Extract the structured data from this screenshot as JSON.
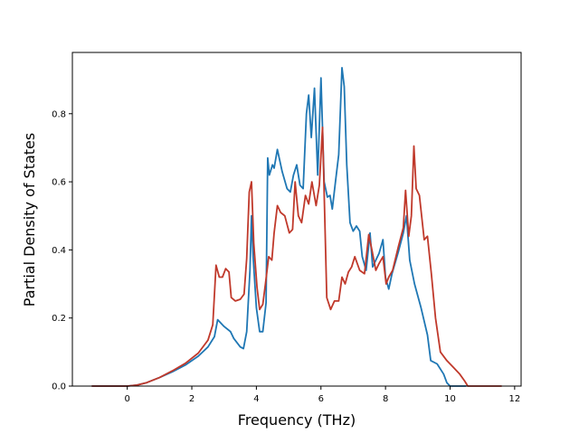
{
  "chart_data": {
    "type": "line",
    "title": "",
    "xlabel": "Frequency (THz)",
    "ylabel": "Partial Density of States",
    "xlim": [
      -1.7,
      12.2
    ],
    "ylim": [
      0.0,
      0.98
    ],
    "grid": false,
    "x_ticks": [
      0,
      2,
      4,
      6,
      8,
      10,
      12
    ],
    "y_ticks": [
      0.0,
      0.2,
      0.4,
      0.6,
      0.8
    ],
    "x_tick_labels": [
      "0",
      "2",
      "4",
      "6",
      "8",
      "10",
      "12"
    ],
    "y_tick_labels": [
      "0.0",
      "0.2",
      "0.4",
      "0.6",
      "0.8"
    ],
    "series": [
      {
        "color": "#1f77b4",
        "points": [
          [
            -1.1,
            0.0
          ],
          [
            0.0,
            0.0
          ],
          [
            0.3,
            0.003
          ],
          [
            0.6,
            0.01
          ],
          [
            1.0,
            0.025
          ],
          [
            1.4,
            0.042
          ],
          [
            1.8,
            0.062
          ],
          [
            2.2,
            0.088
          ],
          [
            2.5,
            0.115
          ],
          [
            2.7,
            0.145
          ],
          [
            2.8,
            0.195
          ],
          [
            3.0,
            0.175
          ],
          [
            3.2,
            0.16
          ],
          [
            3.3,
            0.14
          ],
          [
            3.5,
            0.115
          ],
          [
            3.6,
            0.11
          ],
          [
            3.7,
            0.16
          ],
          [
            3.8,
            0.34
          ],
          [
            3.85,
            0.5
          ],
          [
            3.9,
            0.38
          ],
          [
            4.0,
            0.23
          ],
          [
            4.1,
            0.16
          ],
          [
            4.2,
            0.16
          ],
          [
            4.3,
            0.245
          ],
          [
            4.35,
            0.67
          ],
          [
            4.4,
            0.62
          ],
          [
            4.5,
            0.65
          ],
          [
            4.55,
            0.64
          ],
          [
            4.65,
            0.695
          ],
          [
            4.8,
            0.63
          ],
          [
            4.95,
            0.58
          ],
          [
            5.05,
            0.57
          ],
          [
            5.15,
            0.62
          ],
          [
            5.25,
            0.65
          ],
          [
            5.35,
            0.59
          ],
          [
            5.45,
            0.58
          ],
          [
            5.55,
            0.8
          ],
          [
            5.62,
            0.855
          ],
          [
            5.7,
            0.73
          ],
          [
            5.8,
            0.875
          ],
          [
            5.9,
            0.62
          ],
          [
            6.0,
            0.905
          ],
          [
            6.1,
            0.6
          ],
          [
            6.2,
            0.555
          ],
          [
            6.28,
            0.56
          ],
          [
            6.35,
            0.52
          ],
          [
            6.45,
            0.6
          ],
          [
            6.55,
            0.68
          ],
          [
            6.65,
            0.935
          ],
          [
            6.72,
            0.88
          ],
          [
            6.8,
            0.65
          ],
          [
            6.9,
            0.48
          ],
          [
            7.0,
            0.455
          ],
          [
            7.1,
            0.47
          ],
          [
            7.2,
            0.455
          ],
          [
            7.28,
            0.38
          ],
          [
            7.4,
            0.34
          ],
          [
            7.52,
            0.45
          ],
          [
            7.6,
            0.35
          ],
          [
            7.7,
            0.37
          ],
          [
            7.8,
            0.39
          ],
          [
            7.92,
            0.43
          ],
          [
            8.0,
            0.32
          ],
          [
            8.1,
            0.285
          ],
          [
            8.2,
            0.33
          ],
          [
            8.4,
            0.395
          ],
          [
            8.55,
            0.45
          ],
          [
            8.65,
            0.5
          ],
          [
            8.75,
            0.37
          ],
          [
            8.9,
            0.3
          ],
          [
            9.1,
            0.23
          ],
          [
            9.3,
            0.15
          ],
          [
            9.4,
            0.075
          ],
          [
            9.6,
            0.065
          ],
          [
            9.8,
            0.035
          ],
          [
            9.9,
            0.01
          ],
          [
            10.0,
            0.0
          ],
          [
            10.5,
            0.0
          ]
        ]
      },
      {
        "color": "#c0392b",
        "points": [
          [
            -1.1,
            0.0
          ],
          [
            0.0,
            0.0
          ],
          [
            0.3,
            0.003
          ],
          [
            0.6,
            0.01
          ],
          [
            1.0,
            0.025
          ],
          [
            1.4,
            0.045
          ],
          [
            1.8,
            0.067
          ],
          [
            2.2,
            0.097
          ],
          [
            2.5,
            0.135
          ],
          [
            2.65,
            0.18
          ],
          [
            2.75,
            0.355
          ],
          [
            2.85,
            0.32
          ],
          [
            2.95,
            0.32
          ],
          [
            3.05,
            0.345
          ],
          [
            3.15,
            0.335
          ],
          [
            3.22,
            0.26
          ],
          [
            3.35,
            0.25
          ],
          [
            3.5,
            0.255
          ],
          [
            3.62,
            0.27
          ],
          [
            3.7,
            0.375
          ],
          [
            3.78,
            0.57
          ],
          [
            3.85,
            0.6
          ],
          [
            3.92,
            0.42
          ],
          [
            4.02,
            0.29
          ],
          [
            4.1,
            0.225
          ],
          [
            4.2,
            0.24
          ],
          [
            4.28,
            0.3
          ],
          [
            4.38,
            0.38
          ],
          [
            4.48,
            0.37
          ],
          [
            4.55,
            0.45
          ],
          [
            4.65,
            0.53
          ],
          [
            4.75,
            0.51
          ],
          [
            4.88,
            0.5
          ],
          [
            5.02,
            0.45
          ],
          [
            5.12,
            0.46
          ],
          [
            5.2,
            0.6
          ],
          [
            5.3,
            0.5
          ],
          [
            5.4,
            0.48
          ],
          [
            5.52,
            0.56
          ],
          [
            5.62,
            0.535
          ],
          [
            5.72,
            0.6
          ],
          [
            5.85,
            0.53
          ],
          [
            5.95,
            0.59
          ],
          [
            6.05,
            0.76
          ],
          [
            6.18,
            0.26
          ],
          [
            6.3,
            0.225
          ],
          [
            6.42,
            0.25
          ],
          [
            6.55,
            0.25
          ],
          [
            6.65,
            0.32
          ],
          [
            6.75,
            0.3
          ],
          [
            6.85,
            0.335
          ],
          [
            6.95,
            0.35
          ],
          [
            7.05,
            0.38
          ],
          [
            7.2,
            0.34
          ],
          [
            7.35,
            0.33
          ],
          [
            7.48,
            0.445
          ],
          [
            7.58,
            0.4
          ],
          [
            7.7,
            0.34
          ],
          [
            7.8,
            0.36
          ],
          [
            7.92,
            0.38
          ],
          [
            8.02,
            0.3
          ],
          [
            8.1,
            0.32
          ],
          [
            8.22,
            0.34
          ],
          [
            8.4,
            0.41
          ],
          [
            8.55,
            0.465
          ],
          [
            8.62,
            0.575
          ],
          [
            8.72,
            0.44
          ],
          [
            8.8,
            0.5
          ],
          [
            8.88,
            0.705
          ],
          [
            8.95,
            0.58
          ],
          [
            9.05,
            0.56
          ],
          [
            9.2,
            0.43
          ],
          [
            9.3,
            0.44
          ],
          [
            9.42,
            0.33
          ],
          [
            9.55,
            0.2
          ],
          [
            9.7,
            0.1
          ],
          [
            9.9,
            0.075
          ],
          [
            10.1,
            0.055
          ],
          [
            10.3,
            0.035
          ],
          [
            10.45,
            0.015
          ],
          [
            10.55,
            0.0
          ],
          [
            11.6,
            0.0
          ]
        ]
      }
    ]
  }
}
